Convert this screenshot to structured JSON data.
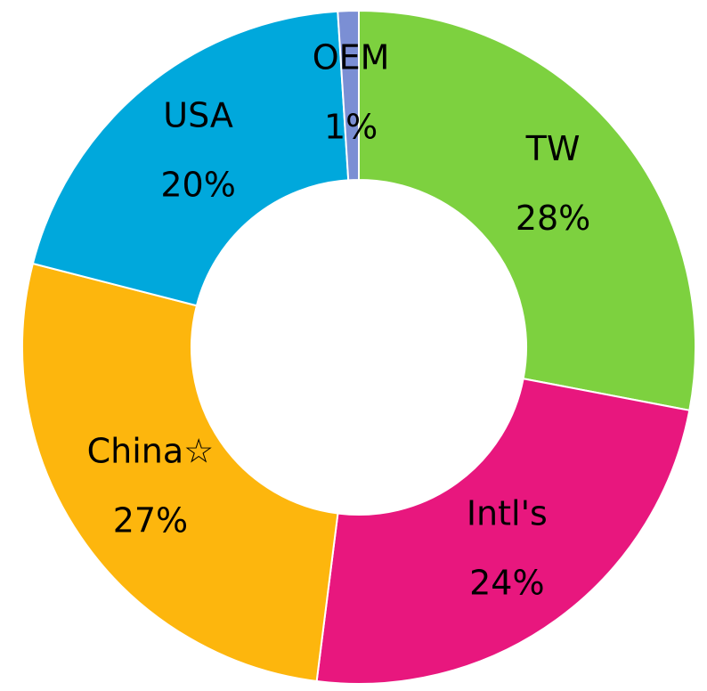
{
  "chart_data": {
    "type": "donut",
    "categories": [
      "TW",
      "Intl's",
      "China☆",
      "USA",
      "OEM"
    ],
    "values": [
      28,
      24,
      27,
      20,
      1
    ],
    "value_labels": [
      "28%",
      "24%",
      "27%",
      "20%",
      "1%"
    ],
    "colors": [
      "#7dd13f",
      "#e8177e",
      "#fdb60d",
      "#00a8dc",
      "#7b8fd4"
    ]
  }
}
